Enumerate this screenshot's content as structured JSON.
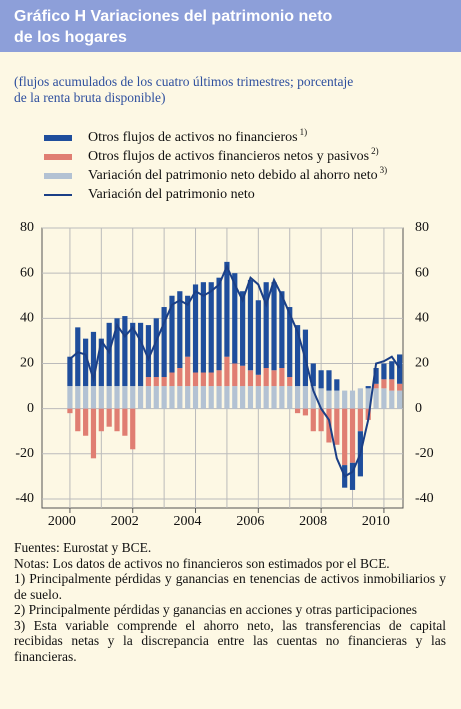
{
  "chart_data": {
    "type": "bar",
    "title": "Gráfico H Variaciones del patrimonio neto de los hogares",
    "subtitle": "(flujos acumulados de los cuatro últimos trimestres; porcentaje de la renta bruta disponible)",
    "categories": [
      "2000",
      null,
      null,
      null,
      null,
      null,
      null,
      null,
      "2002",
      null,
      null,
      null,
      null,
      null,
      null,
      null,
      "2004",
      null,
      null,
      null,
      null,
      null,
      null,
      null,
      "2006",
      null,
      null,
      null,
      null,
      null,
      null,
      null,
      "2008",
      null,
      null,
      null,
      null,
      null,
      null,
      null,
      "2010",
      null,
      null
    ],
    "series": [
      {
        "name": "Otros flujos de activos no financieros",
        "note": "1)",
        "color": "#1f4e9c",
        "type": "bar",
        "values": [
          13,
          26,
          21,
          24,
          21,
          28,
          30,
          31,
          28,
          28,
          23,
          26,
          31,
          34,
          34,
          27,
          39,
          40,
          40,
          41,
          42,
          40,
          33,
          40,
          33,
          38,
          39,
          34,
          31,
          27,
          25,
          10,
          8,
          9,
          5,
          -10,
          -12,
          -20,
          1,
          7,
          7,
          8,
          13
        ]
      },
      {
        "name": "Otros flujos de activos financieros netos y pasivos",
        "note": "2)",
        "color": "#e07e72",
        "type": "bar",
        "values": [
          -2,
          -10,
          -12,
          -22,
          -10,
          -8,
          -10,
          -12,
          -18,
          0,
          4,
          4,
          4,
          6,
          8,
          13,
          6,
          6,
          6,
          7,
          13,
          10,
          9,
          7,
          5,
          8,
          7,
          8,
          4,
          -2,
          -3,
          -10,
          -10,
          -15,
          -16,
          -25,
          -24,
          -10,
          -5,
          2,
          4,
          5,
          3
        ]
      },
      {
        "name": "Variación del patrimonio neto debido al ahorro neto",
        "note": "3)",
        "color": "#b3c2d3",
        "type": "bar",
        "values": [
          10,
          10,
          10,
          10,
          10,
          10,
          10,
          10,
          10,
          10,
          10,
          10,
          10,
          10,
          10,
          10,
          10,
          10,
          10,
          10,
          10,
          10,
          10,
          10,
          10,
          10,
          10,
          10,
          10,
          10,
          10,
          10,
          9,
          8,
          8,
          8,
          8,
          9,
          9,
          9,
          9,
          8,
          8
        ]
      },
      {
        "name": "Variación del patrimonio neto",
        "color": "#1b3f86",
        "type": "line",
        "values": [
          22,
          25,
          24,
          13,
          30,
          25,
          37,
          32,
          36,
          30,
          22,
          30,
          38,
          46,
          48,
          46,
          52,
          50,
          52,
          55,
          63,
          55,
          48,
          58,
          55,
          46,
          57,
          50,
          42,
          34,
          22,
          8,
          0,
          -5,
          -22,
          -30,
          -28,
          -20,
          -5,
          20,
          21,
          23,
          18
        ]
      }
    ],
    "ylim": [
      -44,
      80
    ],
    "yticks": [
      -40,
      -20,
      0,
      20,
      40,
      60,
      80
    ],
    "grid": true,
    "notes": [
      "Fuentes: Eurostat y BCE.",
      "Notas: Los datos de activos no financieros son estimados por el BCE.",
      "1) Principalmente pérdidas y ganancias en tenencias de activos inmobiliarios y de suelo.",
      "2) Principalmente pérdidas y ganancias en acciones y otras participaciones",
      "3) Esta variable comprende el ahorro neto, las transferencias de capital recibidas netas y la discrepancia entre las cuentas no financieras y las financieras."
    ]
  }
}
